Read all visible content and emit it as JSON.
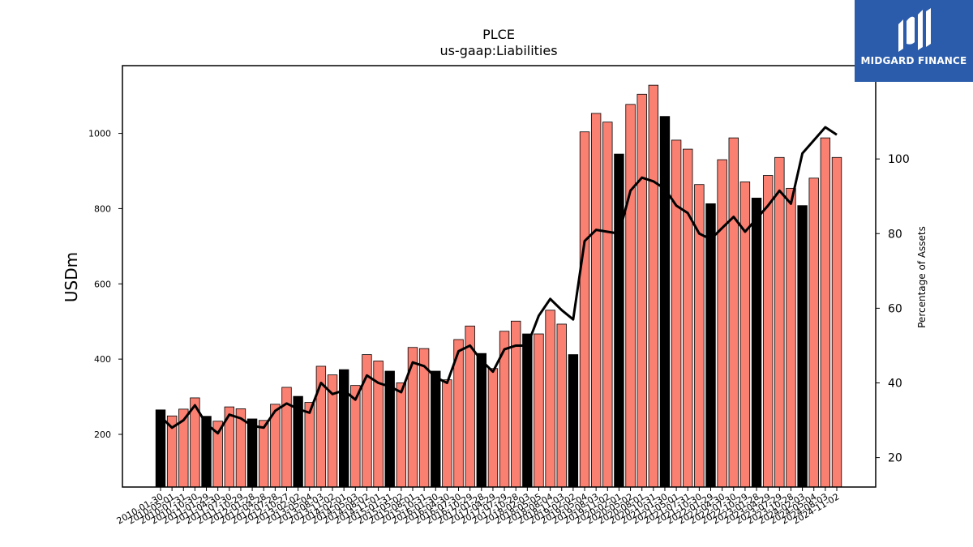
{
  "brand": {
    "name": "MIDGARD FINANCE",
    "color": "#2b5cab"
  },
  "chart_data": {
    "type": "bar",
    "title": "PLCE",
    "subtitle": "us-gaap:Liabilities",
    "ylabel": "USDm",
    "y2label": "Percentage of Assets",
    "ylim": [
      60,
      1180
    ],
    "y2lim": [
      12.1,
      125
    ],
    "yticks": [
      200,
      400,
      600,
      800,
      1000
    ],
    "y2ticks": [
      20,
      40,
      60,
      80,
      100
    ],
    "colors": {
      "highlight": "#000000",
      "default": "#fa8072",
      "line": "#000000"
    },
    "categories": [
      "2010-01-30",
      "2010-05-01",
      "2010-07-31",
      "2010-10-30",
      "2011-01-29",
      "2011-04-30",
      "2011-07-30",
      "2011-10-29",
      "2012-01-28",
      "2012-04-28",
      "2012-07-28",
      "2012-10-27",
      "2013-02-02",
      "2013-05-04",
      "2013-08-03",
      "2013-11-02",
      "2014-02-01",
      "2014-05-03",
      "2014-08-02",
      "2014-11-01",
      "2015-01-31",
      "2015-05-02",
      "2015-08-01",
      "2015-10-31",
      "2016-01-30",
      "2016-04-30",
      "2016-07-30",
      "2016-10-29",
      "2017-01-28",
      "2017-04-29",
      "2017-07-29",
      "2017-10-28",
      "2018-02-03",
      "2018-05-05",
      "2018-08-04",
      "2018-11-03",
      "2019-02-02",
      "2019-05-04",
      "2019-08-03",
      "2019-11-02",
      "2020-02-01",
      "2020-05-02",
      "2020-08-01",
      "2020-10-31",
      "2021-01-30",
      "2021-05-01",
      "2021-07-31",
      "2021-10-30",
      "2022-01-29",
      "2022-04-30",
      "2022-07-30",
      "2022-10-29",
      "2023-01-28",
      "2023-04-29",
      "2023-07-29",
      "2023-10-28",
      "2024-02-03",
      "2024-05-04",
      "2024-08-03",
      "2024-11-02"
    ],
    "highlight": [
      true,
      false,
      false,
      false,
      true,
      false,
      false,
      false,
      true,
      false,
      false,
      false,
      true,
      false,
      false,
      false,
      true,
      false,
      false,
      false,
      true,
      false,
      false,
      false,
      true,
      false,
      false,
      false,
      true,
      false,
      false,
      false,
      true,
      false,
      false,
      false,
      true,
      false,
      false,
      false,
      true,
      false,
      false,
      false,
      true,
      false,
      false,
      false,
      true,
      false,
      false,
      false,
      true,
      false,
      false,
      false,
      true,
      false,
      false,
      false
    ],
    "values": [
      265,
      249,
      267,
      297,
      248,
      235,
      273,
      268,
      241,
      237,
      280,
      325,
      301,
      285,
      381,
      358,
      372,
      330,
      412,
      395,
      368,
      337,
      431,
      428,
      368,
      345,
      452,
      488,
      415,
      375,
      474,
      501,
      467,
      467,
      530,
      493,
      412,
      1004,
      1053,
      1030,
      945,
      1077,
      1104,
      1128,
      1045,
      982,
      958,
      864,
      813,
      930,
      988,
      871,
      828,
      888,
      936,
      854,
      808,
      881,
      988,
      936
    ],
    "series2": {
      "name": "Percentage of Assets",
      "values": [
        31.0,
        28.0,
        30.0,
        34.0,
        29.0,
        26.5,
        31.5,
        30.5,
        28.5,
        28.0,
        32.5,
        34.5,
        33.0,
        32.0,
        40.0,
        37.0,
        38.0,
        35.5,
        42.0,
        40.0,
        39.0,
        37.5,
        45.5,
        44.5,
        41.5,
        40.0,
        48.5,
        50.0,
        46.0,
        43.0,
        49.0,
        50.0,
        50.0,
        58.0,
        62.5,
        59.5,
        57.0,
        78.0,
        81.0,
        80.5,
        80.0,
        91.5,
        95.0,
        94.0,
        92.0,
        87.5,
        85.5,
        80.0,
        78.5,
        81.5,
        84.5,
        80.5,
        84.0,
        87.5,
        91.5,
        88.0,
        101.5,
        105.0,
        108.5,
        106.5
      ]
    }
  }
}
